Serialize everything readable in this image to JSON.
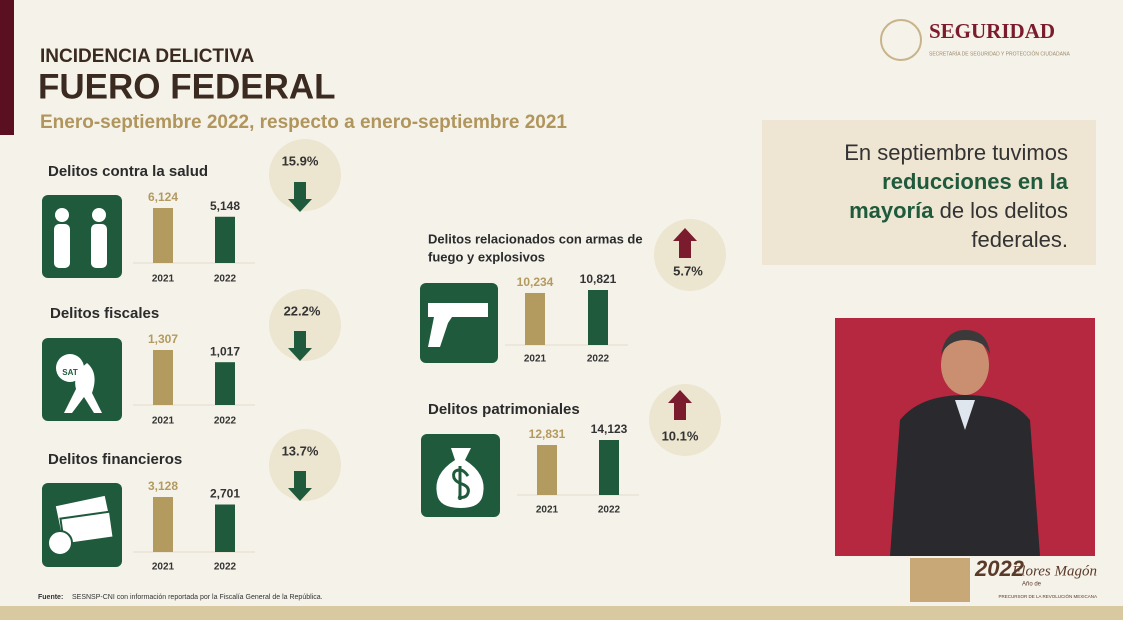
{
  "header": {
    "kicker": "INCIDENCIA DELICTIVA",
    "title": "FUERO FEDERAL",
    "subtitle": "Enero-septiembre 2022, respecto a enero-septiembre 2021"
  },
  "logo": {
    "name": "SEGURIDAD",
    "subtitle": "SECRETARÍA DE SEGURIDAD Y PROTECCIÓN CIUDADANA"
  },
  "panels": [
    {
      "title": "Delitos contra la salud",
      "change": "15.9%",
      "trend": "down",
      "years": [
        "2021",
        "2022"
      ],
      "values": [
        6124,
        5148
      ],
      "value_labels": [
        "6,124",
        "5,148"
      ]
    },
    {
      "title": "Delitos fiscales",
      "change": "22.2%",
      "trend": "down",
      "icon_label": "SAT",
      "years": [
        "2021",
        "2022"
      ],
      "values": [
        1307,
        1017
      ],
      "value_labels": [
        "1,307",
        "1,017"
      ]
    },
    {
      "title": "Delitos financieros",
      "change": "13.7%",
      "trend": "down",
      "years": [
        "2021",
        "2022"
      ],
      "values": [
        3128,
        2701
      ],
      "value_labels": [
        "3,128",
        "2,701"
      ]
    },
    {
      "title_lines": [
        "Delitos relacionados con armas de",
        "fuego y explosivos"
      ],
      "change": "5.7%",
      "trend": "up",
      "years": [
        "2021",
        "2022"
      ],
      "values": [
        10234,
        10821
      ],
      "value_labels": [
        "10,234",
        "10,821"
      ]
    },
    {
      "title": "Delitos patrimoniales",
      "change": "10.1%",
      "trend": "up",
      "years": [
        "2021",
        "2022"
      ],
      "values": [
        12831,
        14123
      ],
      "value_labels": [
        "12,831",
        "14,123"
      ]
    }
  ],
  "callout": {
    "lines": [
      [
        {
          "text": "En septiembre tuvimos",
          "bold": false
        }
      ],
      [
        {
          "text": "reducciones en la",
          "bold": true
        }
      ],
      [
        {
          "text": "mayoría",
          "bold": true
        },
        {
          "text": " de los delitos",
          "bold": false
        }
      ],
      [
        {
          "text": "federales.",
          "bold": false
        }
      ]
    ]
  },
  "footer": {
    "label": "Fuente:",
    "text": "SESNSP-CNI con información reportada por la Fiscalía General de la República."
  },
  "badge": {
    "year": "2022",
    "prefix": "Año de",
    "name": "Flores Magón",
    "caption": "PRECURSOR DE LA REVOLUCIÓN MEXICANA"
  }
}
